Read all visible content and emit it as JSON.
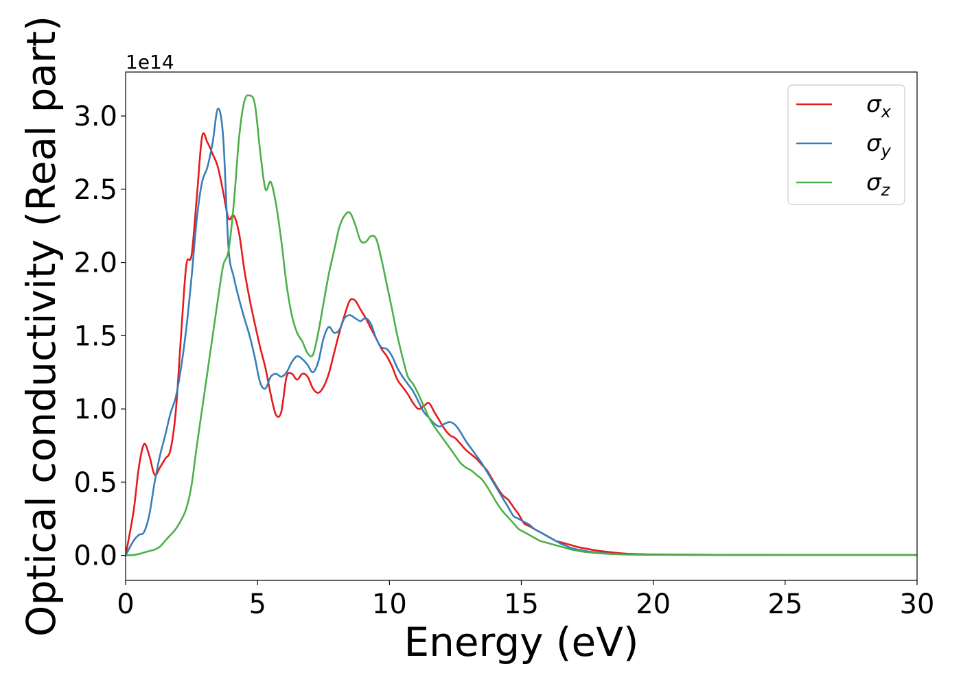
{
  "chart_data": {
    "type": "line",
    "title": "",
    "xlabel": "Energy (eV)",
    "ylabel": "Optical conductivity (Real part)",
    "y_offset_label": "1e14",
    "xlim": [
      0,
      30
    ],
    "ylim": [
      -0.17,
      3.3
    ],
    "x_ticks": [
      0,
      5,
      10,
      15,
      20,
      25,
      30
    ],
    "x_tick_labels": [
      "0",
      "5",
      "10",
      "15",
      "20",
      "25",
      "30"
    ],
    "y_ticks": [
      0.0,
      0.5,
      1.0,
      1.5,
      2.0,
      2.5,
      3.0
    ],
    "y_tick_labels": [
      "0.0",
      "0.5",
      "1.0",
      "1.5",
      "2.0",
      "2.5",
      "3.0"
    ],
    "grid": false,
    "legend_position": "top-right",
    "series": [
      {
        "name": "σx",
        "legend_symbol": "σ",
        "legend_subscript": "x",
        "color": "#e41a1c",
        "x": [
          0,
          0.3,
          0.5,
          0.7,
          0.9,
          1.1,
          1.3,
          1.5,
          1.7,
          1.9,
          2.1,
          2.3,
          2.5,
          2.7,
          2.9,
          3.1,
          3.3,
          3.5,
          3.7,
          3.9,
          4.1,
          4.3,
          4.5,
          4.7,
          4.9,
          5.1,
          5.3,
          5.5,
          5.7,
          5.9,
          6.1,
          6.3,
          6.5,
          6.7,
          6.9,
          7.1,
          7.3,
          7.5,
          7.7,
          7.9,
          8.1,
          8.3,
          8.5,
          8.7,
          8.9,
          9.1,
          9.3,
          9.5,
          9.7,
          9.9,
          10.1,
          10.3,
          10.5,
          10.7,
          10.9,
          11.1,
          11.3,
          11.5,
          11.7,
          11.9,
          12.1,
          12.3,
          12.5,
          12.7,
          12.9,
          13.1,
          13.3,
          13.5,
          13.7,
          13.9,
          14.1,
          14.3,
          14.5,
          14.7,
          14.9,
          15.1,
          15.3,
          15.5,
          15.7,
          15.9,
          16.1,
          16.3,
          16.5,
          16.7,
          16.9,
          17.2,
          17.5,
          17.8,
          18.1,
          18.4,
          18.7,
          19.0,
          19.5,
          20,
          21,
          22,
          23,
          24,
          25,
          26,
          27,
          28,
          29,
          30
        ],
        "values": [
          0,
          0.3,
          0.6,
          0.76,
          0.68,
          0.55,
          0.6,
          0.66,
          0.72,
          0.98,
          1.5,
          1.98,
          2.05,
          2.45,
          2.86,
          2.82,
          2.74,
          2.65,
          2.48,
          2.3,
          2.32,
          2.2,
          1.95,
          1.75,
          1.58,
          1.42,
          1.28,
          1.1,
          0.96,
          0.98,
          1.22,
          1.24,
          1.2,
          1.24,
          1.22,
          1.14,
          1.11,
          1.15,
          1.24,
          1.38,
          1.52,
          1.64,
          1.74,
          1.74,
          1.68,
          1.62,
          1.55,
          1.48,
          1.41,
          1.36,
          1.29,
          1.2,
          1.15,
          1.1,
          1.04,
          1.0,
          1.02,
          1.04,
          0.98,
          0.92,
          0.86,
          0.82,
          0.8,
          0.76,
          0.72,
          0.69,
          0.66,
          0.62,
          0.58,
          0.52,
          0.46,
          0.41,
          0.38,
          0.33,
          0.28,
          0.22,
          0.2,
          0.18,
          0.16,
          0.14,
          0.12,
          0.1,
          0.09,
          0.08,
          0.07,
          0.055,
          0.045,
          0.035,
          0.028,
          0.022,
          0.016,
          0.012,
          0.009,
          0.007,
          0.006,
          0.005,
          0.004,
          0.004,
          0.003,
          0.003,
          0.003,
          0.003,
          0.003,
          0.003
        ]
      },
      {
        "name": "σy",
        "legend_symbol": "σ",
        "legend_subscript": "y",
        "color": "#377eb8",
        "x": [
          0,
          0.3,
          0.5,
          0.7,
          0.9,
          1.1,
          1.3,
          1.5,
          1.7,
          1.9,
          2.1,
          2.3,
          2.5,
          2.7,
          2.9,
          3.1,
          3.3,
          3.5,
          3.7,
          3.9,
          4.1,
          4.3,
          4.5,
          4.7,
          4.9,
          5.1,
          5.3,
          5.5,
          5.7,
          5.9,
          6.1,
          6.3,
          6.5,
          6.7,
          6.9,
          7.1,
          7.3,
          7.5,
          7.7,
          7.9,
          8.1,
          8.3,
          8.5,
          8.7,
          8.9,
          9.1,
          9.3,
          9.5,
          9.7,
          9.9,
          10.1,
          10.3,
          10.5,
          10.7,
          10.9,
          11.1,
          11.3,
          11.5,
          11.7,
          11.9,
          12.1,
          12.3,
          12.5,
          12.7,
          12.9,
          13.1,
          13.3,
          13.5,
          13.7,
          13.9,
          14.1,
          14.3,
          14.5,
          14.7,
          14.9,
          15.1,
          15.3,
          15.5,
          15.7,
          15.9,
          16.1,
          16.3,
          16.5,
          16.7,
          16.9,
          17.2,
          17.5,
          17.8,
          18.1,
          18.4,
          18.7,
          19.0,
          19.5,
          20,
          21,
          22,
          23,
          24,
          25,
          26,
          27,
          28,
          29,
          30
        ],
        "values": [
          0,
          0.1,
          0.14,
          0.16,
          0.28,
          0.5,
          0.68,
          0.82,
          0.97,
          1.08,
          1.28,
          1.55,
          1.9,
          2.3,
          2.55,
          2.65,
          2.82,
          3.05,
          2.85,
          2.1,
          1.9,
          1.75,
          1.62,
          1.5,
          1.35,
          1.18,
          1.14,
          1.22,
          1.24,
          1.22,
          1.25,
          1.32,
          1.36,
          1.34,
          1.3,
          1.25,
          1.32,
          1.48,
          1.56,
          1.52,
          1.54,
          1.62,
          1.64,
          1.62,
          1.6,
          1.62,
          1.58,
          1.48,
          1.42,
          1.41,
          1.36,
          1.28,
          1.22,
          1.17,
          1.12,
          1.05,
          0.98,
          0.94,
          0.9,
          0.88,
          0.9,
          0.91,
          0.89,
          0.84,
          0.78,
          0.73,
          0.68,
          0.63,
          0.57,
          0.51,
          0.45,
          0.39,
          0.33,
          0.27,
          0.25,
          0.23,
          0.21,
          0.18,
          0.16,
          0.14,
          0.12,
          0.1,
          0.08,
          0.065,
          0.05,
          0.038,
          0.028,
          0.021,
          0.016,
          0.012,
          0.009,
          0.007,
          0.006,
          0.005,
          0.004,
          0.004,
          0.003,
          0.003,
          0.003,
          0.003,
          0.003,
          0.003,
          0.003,
          0.003
        ]
      },
      {
        "name": "σz",
        "legend_symbol": "σ",
        "legend_subscript": "z",
        "color": "#4daf4a",
        "x": [
          0,
          0.3,
          0.5,
          0.7,
          0.9,
          1.1,
          1.3,
          1.5,
          1.7,
          1.9,
          2.1,
          2.3,
          2.5,
          2.7,
          2.9,
          3.1,
          3.3,
          3.5,
          3.7,
          3.9,
          4.1,
          4.3,
          4.5,
          4.7,
          4.9,
          5.1,
          5.3,
          5.5,
          5.7,
          5.9,
          6.1,
          6.3,
          6.5,
          6.7,
          6.9,
          7.1,
          7.3,
          7.5,
          7.7,
          7.9,
          8.1,
          8.3,
          8.5,
          8.7,
          8.9,
          9.1,
          9.3,
          9.5,
          9.7,
          9.9,
          10.1,
          10.3,
          10.5,
          10.7,
          10.9,
          11.1,
          11.3,
          11.5,
          11.7,
          11.9,
          12.1,
          12.3,
          12.5,
          12.7,
          12.9,
          13.1,
          13.3,
          13.5,
          13.7,
          13.9,
          14.1,
          14.3,
          14.5,
          14.7,
          14.9,
          15.1,
          15.3,
          15.5,
          15.7,
          15.9,
          16.1,
          16.3,
          16.5,
          16.7,
          16.9,
          17.2,
          17.5,
          17.8,
          18.1,
          18.4,
          18.7,
          19.0,
          19.5,
          20,
          21,
          22,
          23,
          24,
          25,
          26,
          27,
          28,
          29,
          30
        ],
        "values": [
          0,
          0.003,
          0.01,
          0.02,
          0.03,
          0.04,
          0.06,
          0.1,
          0.14,
          0.18,
          0.24,
          0.32,
          0.48,
          0.75,
          1.0,
          1.25,
          1.5,
          1.75,
          1.98,
          2.08,
          2.4,
          2.85,
          3.1,
          3.14,
          3.08,
          2.76,
          2.5,
          2.55,
          2.4,
          2.15,
          1.85,
          1.64,
          1.52,
          1.46,
          1.38,
          1.37,
          1.52,
          1.72,
          1.92,
          2.08,
          2.24,
          2.32,
          2.34,
          2.26,
          2.15,
          2.14,
          2.18,
          2.16,
          2.02,
          1.85,
          1.68,
          1.5,
          1.35,
          1.22,
          1.17,
          1.1,
          1.02,
          0.94,
          0.88,
          0.83,
          0.78,
          0.73,
          0.68,
          0.63,
          0.6,
          0.58,
          0.55,
          0.52,
          0.47,
          0.41,
          0.35,
          0.3,
          0.26,
          0.22,
          0.18,
          0.16,
          0.14,
          0.12,
          0.1,
          0.09,
          0.08,
          0.07,
          0.06,
          0.05,
          0.04,
          0.03,
          0.022,
          0.017,
          0.013,
          0.01,
          0.008,
          0.006,
          0.005,
          0.004,
          0.004,
          0.003,
          0.003,
          0.003,
          0.003,
          0.003,
          0.003,
          0.003,
          0.003,
          0.003
        ]
      }
    ]
  }
}
